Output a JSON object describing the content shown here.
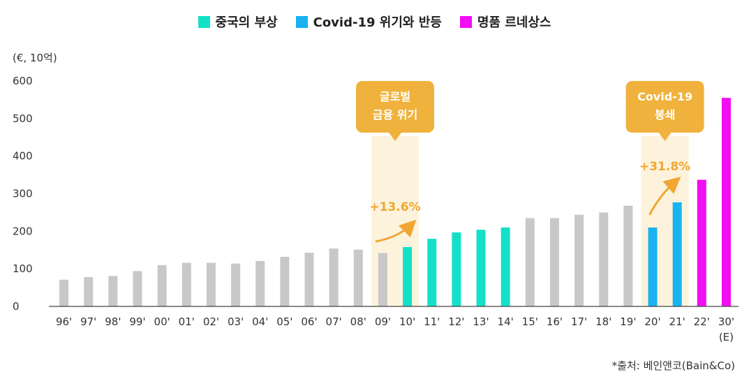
{
  "legend": [
    {
      "label": "중국의 부상",
      "color": "#14e0c8"
    },
    {
      "label": "Covid-19 위기와 반등",
      "color": "#1ab2f0"
    },
    {
      "label": "명품 르네상스",
      "color": "#f20df2"
    }
  ],
  "unit_label": "(€, 10억)",
  "source": "*출처: 베인앤코(Bain&Co)",
  "callouts": [
    {
      "lines": [
        "글로벌",
        "금융 위기"
      ],
      "growth": "+13.6%"
    },
    {
      "lines": [
        "Covid-19",
        "봉쇄"
      ],
      "growth": "+31.8%"
    }
  ],
  "colors": {
    "default": "#c8c8c8",
    "china": "#14e0c8",
    "covid": "#1ab2f0",
    "luxury": "#f20df2",
    "callout": "#f0b23c",
    "highlight": "#fdf3dc",
    "arrow": "#f0a630"
  },
  "chart_data": {
    "type": "bar",
    "categories": [
      "96'",
      "97'",
      "98'",
      "99'",
      "00'",
      "01'",
      "02'",
      "03'",
      "04'",
      "05'",
      "06'",
      "07'",
      "08'",
      "09'",
      "10'",
      "11'",
      "12'",
      "13'",
      "14'",
      "15'",
      "16'",
      "17'",
      "18'",
      "19'",
      "20'",
      "21'",
      "22'",
      "30'"
    ],
    "extra_tick_label": "(E)",
    "values": [
      71,
      78,
      81,
      94,
      110,
      116,
      116,
      114,
      121,
      132,
      143,
      154,
      151,
      142,
      158,
      180,
      197,
      204,
      210,
      235,
      235,
      244,
      250,
      268,
      210,
      277,
      337,
      555
    ],
    "groups": [
      "default",
      "default",
      "default",
      "default",
      "default",
      "default",
      "default",
      "default",
      "default",
      "default",
      "default",
      "default",
      "default",
      "default",
      "china",
      "china",
      "china",
      "china",
      "china",
      "default",
      "default",
      "default",
      "default",
      "default",
      "covid",
      "covid",
      "luxury",
      "luxury"
    ],
    "ylim": [
      0,
      600
    ],
    "yticks": [
      0,
      100,
      200,
      300,
      400,
      500,
      600
    ]
  }
}
